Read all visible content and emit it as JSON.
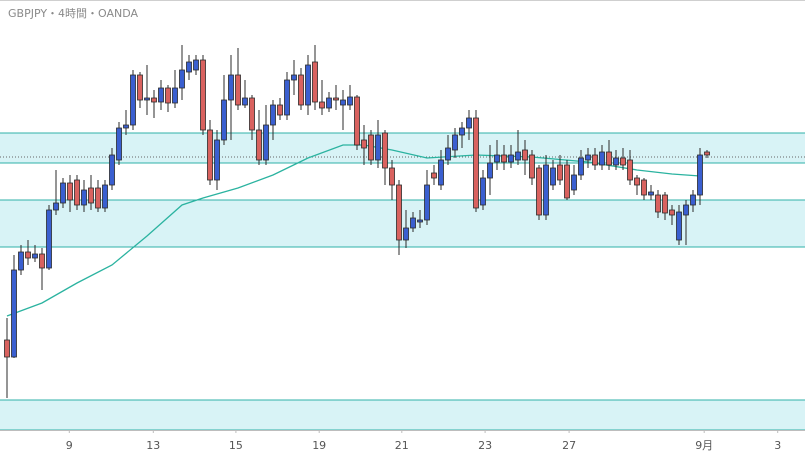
{
  "chart_data": {
    "type": "candlestick",
    "title": "GBPJPY・4時間・OANDA",
    "open": [
      90,
      73,
      160,
      178,
      172,
      176,
      162,
      220,
      227,
      247,
      250,
      225,
      242,
      242,
      222,
      245,
      270,
      302,
      305,
      355,
      330,
      332,
      328,
      342,
      327,
      342,
      358,
      360,
      370,
      300,
      250,
      290,
      330,
      355,
      325,
      332,
      300,
      270,
      305,
      325,
      315,
      350,
      355,
      325,
      368,
      328,
      322,
      332,
      325,
      325,
      333,
      290,
      295,
      270,
      297,
      262,
      245,
      190,
      202,
      208,
      210,
      257,
      245,
      270,
      280,
      295,
      302,
      312,
      225,
      252,
      268,
      275,
      268,
      270,
      280,
      275,
      262,
      215,
      245,
      265,
      265,
      240,
      255,
      270,
      275,
      265,
      278,
      265,
      272,
      270,
      252,
      250,
      235,
      235,
      235,
      220,
      190,
      215,
      225,
      235,
      278
    ],
    "high": [
      112,
      175,
      185,
      190,
      185,
      182,
      225,
      260,
      252,
      255,
      255,
      250,
      255,
      250,
      250,
      282,
      308,
      320,
      360,
      358,
      365,
      340,
      350,
      345,
      360,
      385,
      375,
      375,
      375,
      310,
      300,
      355,
      375,
      382,
      350,
      335,
      320,
      325,
      330,
      332,
      358,
      370,
      362,
      375,
      385,
      350,
      338,
      345,
      340,
      345,
      335,
      305,
      300,
      310,
      300,
      270,
      250,
      220,
      218,
      220,
      260,
      265,
      280,
      295,
      302,
      308,
      320,
      320,
      260,
      285,
      290,
      285,
      285,
      300,
      290,
      280,
      265,
      275,
      270,
      275,
      270,
      265,
      280,
      282,
      282,
      285,
      290,
      280,
      282,
      280,
      255,
      252,
      245,
      240,
      238,
      225,
      225,
      230,
      240,
      282,
      280
    ],
    "low": [
      32,
      72,
      155,
      165,
      168,
      140,
      160,
      215,
      222,
      218,
      220,
      218,
      220,
      218,
      218,
      240,
      265,
      295,
      300,
      322,
      315,
      312,
      320,
      318,
      322,
      330,
      350,
      355,
      295,
      245,
      240,
      285,
      290,
      320,
      322,
      290,
      265,
      265,
      290,
      310,
      310,
      335,
      320,
      315,
      320,
      315,
      318,
      320,
      300,
      320,
      280,
      265,
      265,
      262,
      245,
      230,
      175,
      182,
      198,
      202,
      205,
      245,
      240,
      265,
      272,
      282,
      290,
      218,
      220,
      235,
      260,
      260,
      262,
      265,
      255,
      245,
      210,
      210,
      240,
      245,
      230,
      235,
      250,
      262,
      260,
      260,
      260,
      260,
      260,
      245,
      235,
      230,
      230,
      212,
      210,
      205,
      185,
      185,
      218,
      225,
      272
    ],
    "close": [
      73,
      160,
      178,
      172,
      176,
      162,
      220,
      227,
      247,
      230,
      225,
      240,
      227,
      222,
      245,
      275,
      302,
      305,
      355,
      330,
      332,
      328,
      342,
      327,
      342,
      360,
      368,
      370,
      300,
      250,
      290,
      330,
      355,
      325,
      332,
      300,
      270,
      305,
      325,
      315,
      350,
      355,
      325,
      365,
      328,
      322,
      332,
      330,
      330,
      333,
      285,
      282,
      270,
      295,
      262,
      245,
      190,
      202,
      212,
      210,
      245,
      252,
      270,
      282,
      295,
      302,
      312,
      222,
      252,
      267,
      275,
      268,
      275,
      278,
      270,
      252,
      215,
      265,
      262,
      250,
      232,
      255,
      272,
      275,
      265,
      278,
      265,
      272,
      265,
      250,
      245,
      235,
      238,
      218,
      217,
      215,
      218,
      225,
      235,
      275,
      275
    ],
    "up_color": "#3a5fd0",
    "down_color": "#d9625f",
    "outline_color": "#2b2b2b",
    "ma": {
      "x": [
        0,
        5,
        10,
        15,
        20,
        25,
        28,
        33,
        38,
        43,
        48,
        51,
        55,
        60,
        67,
        75,
        83,
        90,
        95,
        99
      ],
      "values": [
        114,
        127,
        147,
        165,
        194,
        225,
        232,
        242,
        255,
        272,
        285,
        285,
        280,
        272,
        275,
        273,
        268,
        260,
        256,
        254
      ],
      "color": "#2bb3a0"
    },
    "zones": [
      {
        "from": 267,
        "to": 297
      },
      {
        "from": 183,
        "to": 230
      },
      {
        "from": 0,
        "to": 30
      }
    ],
    "zone_fill": "#d8f3f6",
    "zone_line": "#2fb0a8",
    "price_line": 273,
    "xlim": [
      -1,
      114
    ],
    "ylim": [
      0,
      430
    ],
    "xticks": [
      {
        "value": 8.9,
        "label": "9"
      },
      {
        "value": 20.9,
        "label": "13"
      },
      {
        "value": 32.7,
        "label": "15"
      },
      {
        "value": 44.6,
        "label": "19"
      },
      {
        "value": 56.4,
        "label": "21"
      },
      {
        "value": 68.3,
        "label": "23"
      },
      {
        "value": 80.3,
        "label": "27"
      },
      {
        "value": 99.6,
        "label": "9月"
      },
      {
        "value": 110.1,
        "label": "3"
      }
    ]
  }
}
